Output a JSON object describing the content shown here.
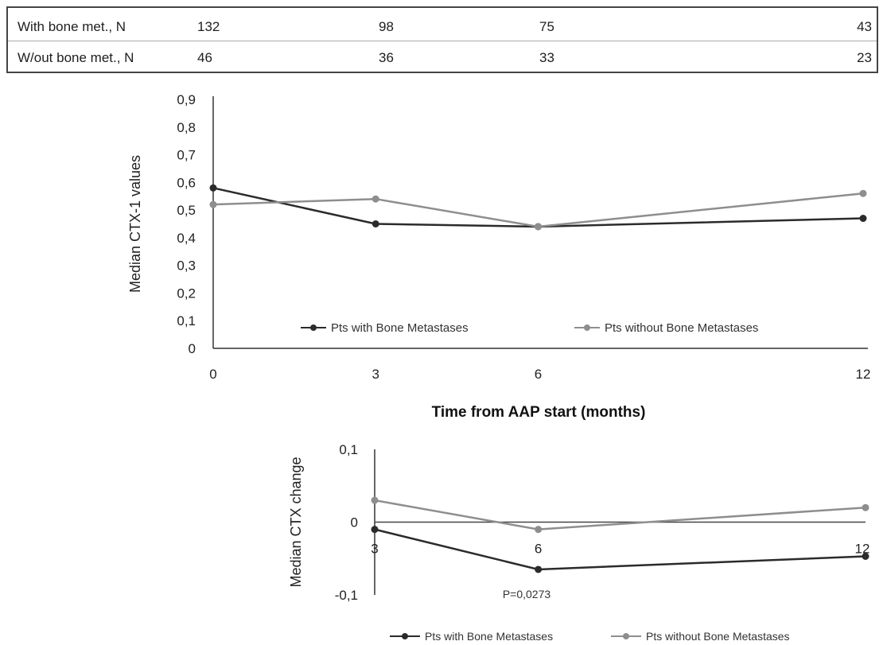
{
  "table": {
    "rows": [
      {
        "label": "With bone met., N",
        "values": [
          "132",
          "98",
          "75",
          "43"
        ]
      },
      {
        "label": "W/out bone met., N",
        "values": [
          "46",
          "36",
          "33",
          "23"
        ]
      }
    ]
  },
  "colors": {
    "with_mets": "#2b2b2b",
    "without_mets": "#8e8e8e",
    "axis": "#333333",
    "zero_line": "#444444"
  },
  "chart_data": [
    {
      "type": "line",
      "title": "",
      "xlabel": "Time from AAP start (months)",
      "ylabel": "Median CTX-1 values",
      "x": [
        0,
        3,
        6,
        12
      ],
      "x_tick_labels": [
        "0",
        "3",
        "6",
        "12"
      ],
      "ylim": [
        0,
        0.9
      ],
      "y_tick_labels": [
        "0",
        "0,1",
        "0,2",
        "0,3",
        "0,4",
        "0,5",
        "0,6",
        "0,7",
        "0,8",
        "0,9"
      ],
      "grid": false,
      "legend_position": "bottom-inside",
      "series": [
        {
          "name": "Pts with Bone Metastases",
          "values": [
            0.58,
            0.45,
            0.44,
            0.47
          ]
        },
        {
          "name": "Pts without Bone Metastases",
          "values": [
            0.52,
            0.54,
            0.44,
            0.56
          ]
        }
      ]
    },
    {
      "type": "line",
      "title": "",
      "xlabel": "",
      "ylabel": "Median CTX change",
      "x": [
        3,
        6,
        12
      ],
      "x_tick_labels": [
        "3",
        "6",
        "12"
      ],
      "ylim": [
        -0.1,
        0.1
      ],
      "y_tick_labels": [
        "-0,1",
        "0",
        "0,1"
      ],
      "grid": false,
      "legend_position": "bottom",
      "annotation": "P=0,0273",
      "series": [
        {
          "name": "Pts with Bone Metastases",
          "values": [
            -0.01,
            -0.065,
            -0.047
          ]
        },
        {
          "name": "Pts without Bone Metastases",
          "values": [
            0.03,
            -0.01,
            0.02
          ]
        }
      ]
    }
  ]
}
